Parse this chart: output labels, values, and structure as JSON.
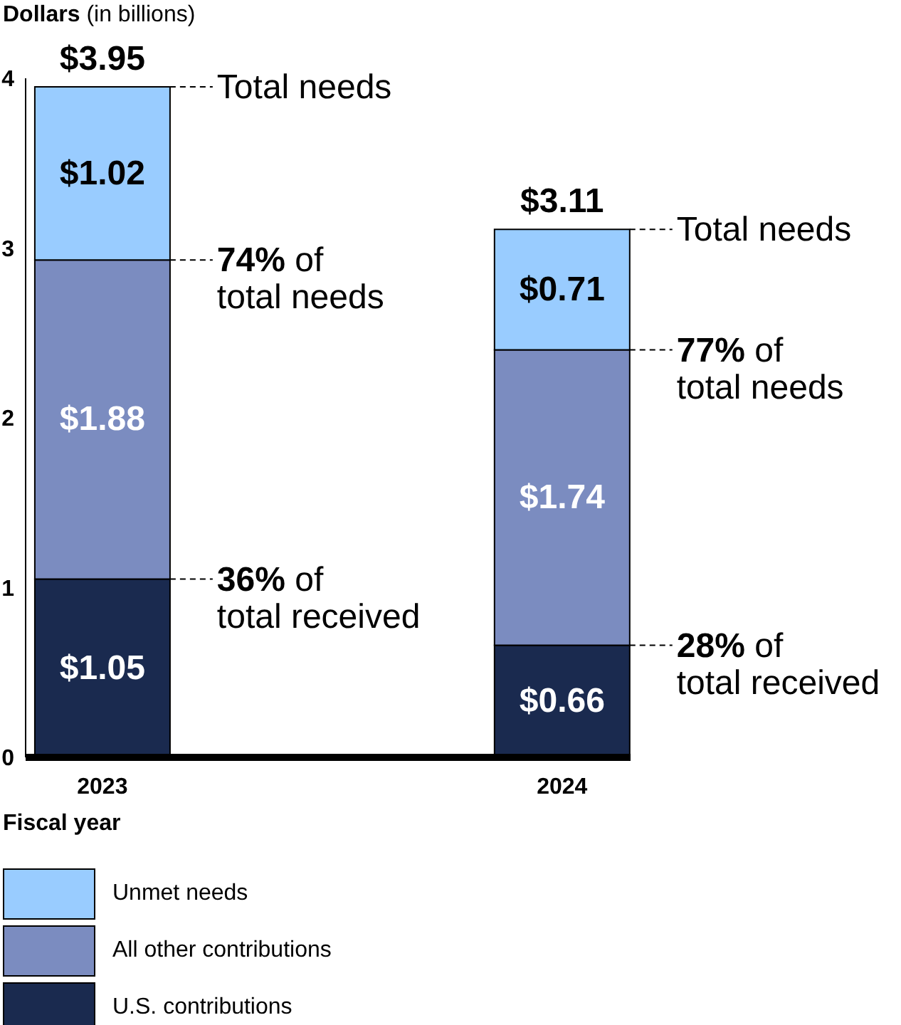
{
  "chart_data": {
    "type": "bar",
    "stacked": true,
    "ylabel": "Dollars (in billions)",
    "xlabel": "Fiscal year",
    "categories": [
      "2023",
      "2024"
    ],
    "series": [
      {
        "name": "U.S. contributions",
        "color": "#1a2a4f",
        "values": [
          1.05,
          0.66
        ],
        "value_labels": [
          "$1.05",
          "$0.66"
        ]
      },
      {
        "name": "All other contributions",
        "color": "#7b8cc0",
        "values": [
          1.88,
          1.74
        ],
        "value_labels": [
          "$1.88",
          "$1.74"
        ]
      },
      {
        "name": "Unmet needs",
        "color": "#99ccff",
        "values": [
          1.02,
          0.71
        ],
        "value_labels": [
          "$1.02",
          "$0.71"
        ]
      }
    ],
    "totals": [
      "$3.95",
      "$3.11"
    ],
    "ylim": [
      0,
      4
    ],
    "yticks": [
      0,
      1,
      2,
      3,
      4
    ],
    "grid": false,
    "legend": "bottom",
    "annotations": [
      "Total needs",
      "74% of\ntotal needs",
      "36% of\ntotal received",
      "Total needs",
      "77% of\ntotal needs",
      "28% of\ntotal received"
    ]
  }
}
